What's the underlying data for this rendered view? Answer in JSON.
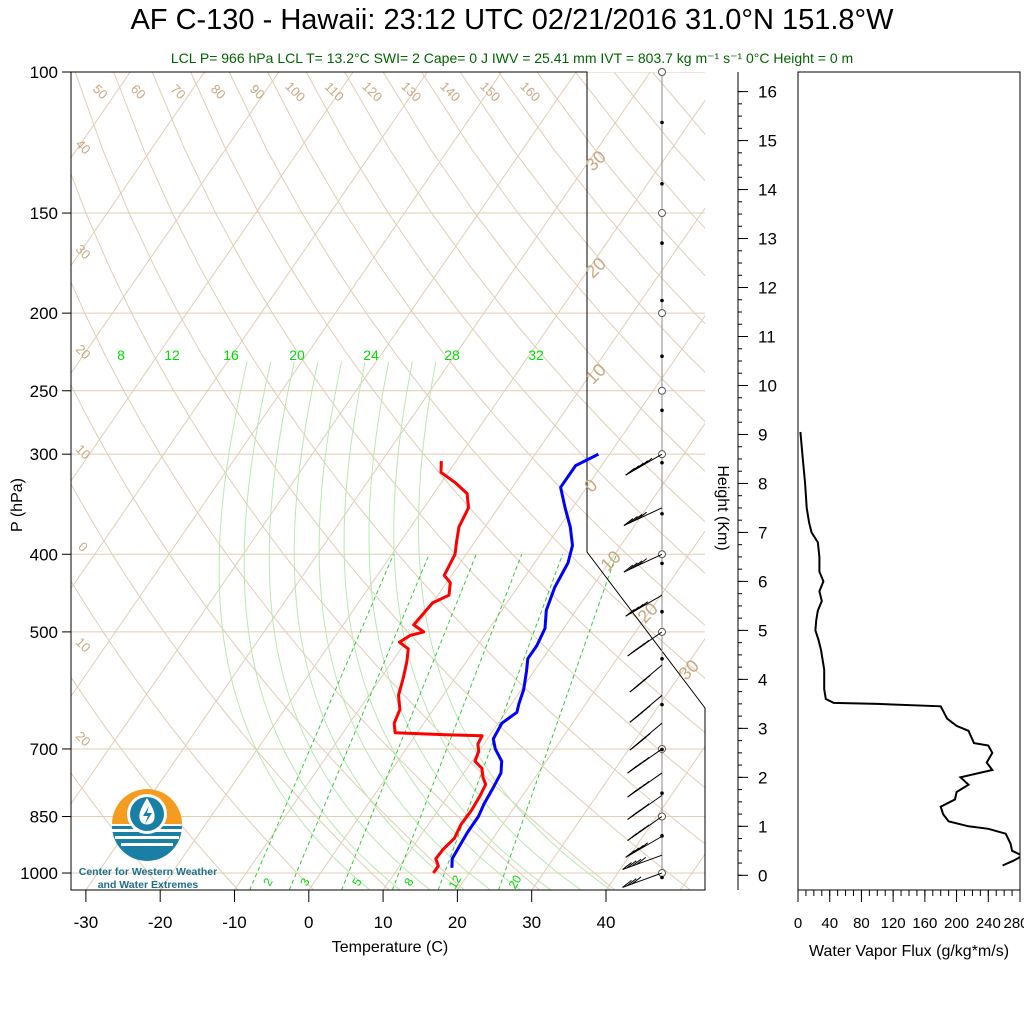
{
  "chart_data": [
    {
      "type": "line",
      "title": "AF C-130 - Hawaii: 23:12 UTC 02/21/2016  31.0°N 151.8°W",
      "subtitle": "LCL P= 966 hPa  LCL T= 13.2°C  SWI= 2  Cape= 0 J  IWV = 25.41 mm  IVT = 803.7 kg m⁻¹ s⁻¹  0°C Height = 0 m",
      "xlabel": "Temperature (C)",
      "ylabel": "P (hPa)",
      "xlim": [
        -33,
        52
      ],
      "ylim": [
        1050,
        100
      ],
      "yscale": "log",
      "x_ticks": [
        "-30",
        "-20",
        "-10",
        "0",
        "10",
        "20",
        "30",
        "40"
      ],
      "y_ticks": [
        "100",
        "150",
        "200",
        "250",
        "300",
        "400",
        "500",
        "700",
        "850",
        "1000"
      ],
      "mixing_ratio_labels": [
        "8",
        "12",
        "16",
        "20",
        "24",
        "28",
        "32"
      ],
      "mixing_ratio_bottom_labels": [
        "2",
        "3",
        "5",
        "8",
        "12",
        "20"
      ],
      "adiabat_labels": [
        "50",
        "60",
        "70",
        "80",
        "90",
        "100",
        "110",
        "120",
        "130",
        "140",
        "150",
        "160"
      ],
      "left_isotherm_labels": [
        "40",
        "30",
        "20",
        "10",
        "0",
        "10",
        "20"
      ],
      "right_isotherm_labels": [
        "30",
        "20",
        "10",
        "0",
        "10",
        "20",
        "30"
      ],
      "series": [
        {
          "name": "",
          "color": "#ff0000",
          "points": [
            [
              -22,
              306
            ],
            [
              -21,
              316
            ],
            [
              -18,
              326
            ],
            [
              -15.5,
              336
            ],
            [
              -14,
              350
            ],
            [
              -13.5,
              370
            ],
            [
              -12.5,
              385
            ],
            [
              -11.5,
              400
            ],
            [
              -11,
              425
            ],
            [
              -9.5,
              434
            ],
            [
              -8.5,
              450
            ],
            [
              -10,
              460
            ],
            [
              -10.5,
              490
            ],
            [
              -8.5,
              500
            ],
            [
              -10,
              505
            ],
            [
              -10.8,
              515
            ],
            [
              -9,
              525
            ],
            [
              -8,
              545
            ],
            [
              -7,
              570
            ],
            [
              -6,
              600
            ],
            [
              -4.5,
              625
            ],
            [
              -4,
              650
            ],
            [
              -3,
              668
            ],
            [
              4,
              672
            ],
            [
              9,
              674
            ],
            [
              9.2,
              690
            ],
            [
              10,
              705
            ],
            [
              10.4,
              725
            ],
            [
              12,
              740
            ],
            [
              13,
              760
            ],
            [
              14,
              775
            ],
            [
              14.3,
              800
            ],
            [
              14.5,
              835
            ],
            [
              14.4,
              870
            ],
            [
              14.8,
              905
            ],
            [
              14.3,
              935
            ],
            [
              14.2,
              960
            ],
            [
              15.2,
              980
            ],
            [
              15.2,
              1000
            ]
          ]
        },
        {
          "name": "",
          "color": "#0000ff",
          "points": [
            [
              -1.5,
              300
            ],
            [
              -3.5,
              310
            ],
            [
              -3.5,
              330
            ],
            [
              -1,
              350
            ],
            [
              1.5,
              370
            ],
            [
              3.5,
              390
            ],
            [
              4.5,
              410
            ],
            [
              5,
              440
            ],
            [
              6,
              470
            ],
            [
              7.5,
              495
            ],
            [
              8,
              520
            ],
            [
              8,
              540
            ],
            [
              9,
              560
            ],
            [
              10.3,
              590
            ],
            [
              11,
              615
            ],
            [
              11.5,
              630
            ],
            [
              10.5,
              650
            ],
            [
              10.8,
              680
            ],
            [
              12,
              700
            ],
            [
              14,
              725
            ],
            [
              15,
              750
            ],
            [
              15.3,
              780
            ],
            [
              15.6,
              820
            ],
            [
              16,
              850
            ],
            [
              16,
              890
            ],
            [
              16.2,
              925
            ],
            [
              16.4,
              960
            ],
            [
              17.2,
              985
            ]
          ]
        }
      ],
      "wind_profile": [
        {
          "p": 300,
          "speed_kt": 45,
          "dir_deg": 240
        },
        {
          "p": 350,
          "speed_kt": 40,
          "dir_deg": 245
        },
        {
          "p": 400,
          "speed_kt": 40,
          "dir_deg": 245
        },
        {
          "p": 450,
          "speed_kt": 35,
          "dir_deg": 240
        },
        {
          "p": 500,
          "speed_kt": 35,
          "dir_deg": 235
        },
        {
          "p": 550,
          "speed_kt": 35,
          "dir_deg": 230
        },
        {
          "p": 600,
          "speed_kt": 35,
          "dir_deg": 230
        },
        {
          "p": 650,
          "speed_kt": 35,
          "dir_deg": 230
        },
        {
          "p": 700,
          "speed_kt": 35,
          "dir_deg": 235
        },
        {
          "p": 750,
          "speed_kt": 35,
          "dir_deg": 235
        },
        {
          "p": 800,
          "speed_kt": 35,
          "dir_deg": 235
        },
        {
          "p": 850,
          "speed_kt": 35,
          "dir_deg": 235
        },
        {
          "p": 900,
          "speed_kt": 35,
          "dir_deg": 240
        },
        {
          "p": 950,
          "speed_kt": 35,
          "dir_deg": 250
        },
        {
          "p": 1000,
          "speed_kt": 30,
          "dir_deg": 250
        }
      ]
    },
    {
      "type": "line",
      "xlabel": "Water Vapor Flux (g/kg*m/s)",
      "ylabel": "Height (Km)",
      "xlim": [
        0,
        280
      ],
      "ylim": [
        -0.3,
        16.4
      ],
      "x_ticks": [
        "0",
        "40",
        "80",
        "120",
        "160",
        "200",
        "240",
        "280"
      ],
      "y_ticks": [
        "0",
        "1",
        "2",
        "3",
        "4",
        "5",
        "6",
        "7",
        "8",
        "9",
        "10",
        "11",
        "12",
        "13",
        "14",
        "15",
        "16"
      ],
      "series": [
        {
          "name": "",
          "color": "#000000",
          "points": [
            [
              3,
              9.05
            ],
            [
              6,
              8.5
            ],
            [
              9,
              8.0
            ],
            [
              11,
              7.5
            ],
            [
              14,
              7.2
            ],
            [
              17,
              7.0
            ],
            [
              25,
              6.8
            ],
            [
              27,
              6.5
            ],
            [
              27,
              6.2
            ],
            [
              32,
              6.0
            ],
            [
              27,
              5.8
            ],
            [
              30,
              5.6
            ],
            [
              25,
              5.4
            ],
            [
              23,
              5.2
            ],
            [
              22,
              5.0
            ],
            [
              26,
              4.8
            ],
            [
              29,
              4.6
            ],
            [
              31,
              4.4
            ],
            [
              33,
              4.2
            ],
            [
              33,
              3.8
            ],
            [
              35,
              3.6
            ],
            [
              45,
              3.52
            ],
            [
              100,
              3.5
            ],
            [
              180,
              3.45
            ],
            [
              188,
              3.2
            ],
            [
              200,
              3.05
            ],
            [
              215,
              2.95
            ],
            [
              222,
              2.7
            ],
            [
              240,
              2.65
            ],
            [
              245,
              2.5
            ],
            [
              238,
              2.3
            ],
            [
              245,
              2.15
            ],
            [
              205,
              2.0
            ],
            [
              215,
              1.85
            ],
            [
              200,
              1.7
            ],
            [
              198,
              1.55
            ],
            [
              180,
              1.4
            ],
            [
              183,
              1.25
            ],
            [
              190,
              1.1
            ],
            [
              215,
              1.0
            ],
            [
              240,
              0.95
            ],
            [
              262,
              0.85
            ],
            [
              268,
              0.65
            ],
            [
              270,
              0.5
            ],
            [
              283,
              0.4
            ],
            [
              272,
              0.3
            ],
            [
              258,
              0.2
            ]
          ]
        }
      ]
    }
  ],
  "logo": {
    "line1": "Center for Western Weather",
    "line2": "and Water Extremes"
  }
}
